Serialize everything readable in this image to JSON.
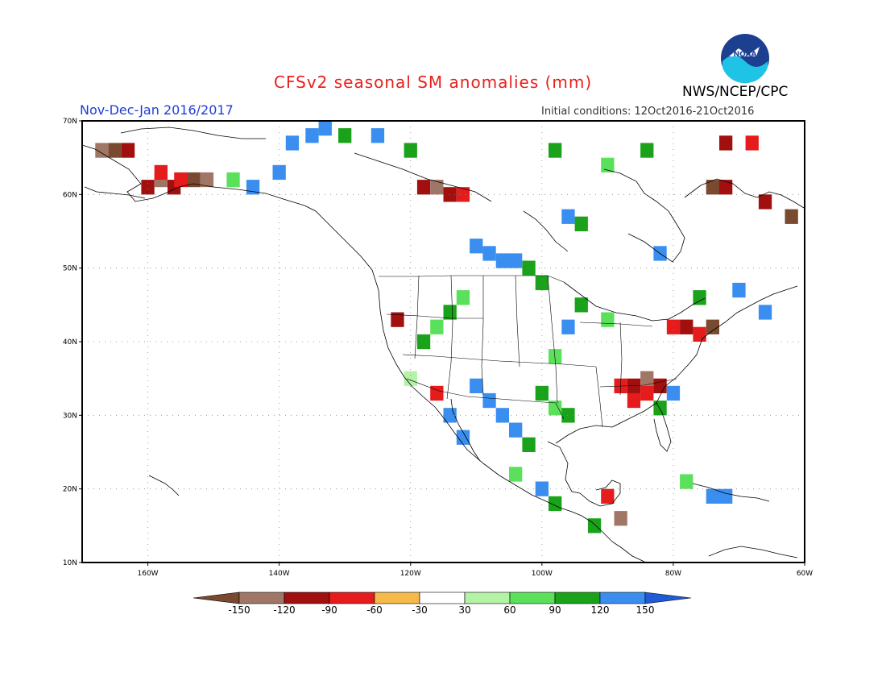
{
  "header": {
    "title": "CFSv2 seasonal SM anomalies (mm)",
    "period": "Nov-Dec-Jan 2016/2017",
    "initial_conditions": "Initial conditions: 12Oct2016-21Oct2016",
    "agency": "NWS/NCEP/CPC",
    "logo_text": "NOAA"
  },
  "map": {
    "lat_labels": [
      "70N",
      "60N",
      "50N",
      "40N",
      "30N",
      "20N",
      "10N"
    ],
    "lon_labels": [
      "160W",
      "140W",
      "120W",
      "100W",
      "80W",
      "60W"
    ],
    "lat_range": [
      10,
      70
    ],
    "lon_range": [
      -170,
      -60
    ],
    "grid": "dotted",
    "anomaly_cells": [
      {
        "lon": -167,
        "lat": 66,
        "v": -120
      },
      {
        "lon": -165,
        "lat": 66,
        "v": -150
      },
      {
        "lon": -163,
        "lat": 66,
        "v": -90
      },
      {
        "lon": -160,
        "lat": 61,
        "v": -90
      },
      {
        "lon": -158,
        "lat": 62,
        "v": -120
      },
      {
        "lon": -156,
        "lat": 61,
        "v": -90
      },
      {
        "lon": -155,
        "lat": 62,
        "v": -60
      },
      {
        "lon": -158,
        "lat": 63,
        "v": -60
      },
      {
        "lon": -153,
        "lat": 62,
        "v": -150
      },
      {
        "lon": -151,
        "lat": 62,
        "v": -120
      },
      {
        "lon": -147,
        "lat": 62,
        "v": 60
      },
      {
        "lon": -144,
        "lat": 61,
        "v": 150
      },
      {
        "lon": -140,
        "lat": 63,
        "v": 150
      },
      {
        "lon": -138,
        "lat": 67,
        "v": 120
      },
      {
        "lon": -135,
        "lat": 68,
        "v": 150
      },
      {
        "lon": -133,
        "lat": 69,
        "v": 150
      },
      {
        "lon": -130,
        "lat": 68,
        "v": 90
      },
      {
        "lon": -125,
        "lat": 68,
        "v": 120
      },
      {
        "lon": -120,
        "lat": 66,
        "v": 90
      },
      {
        "lon": -118,
        "lat": 61,
        "v": -90
      },
      {
        "lon": -116,
        "lat": 61,
        "v": -120
      },
      {
        "lon": -114,
        "lat": 60,
        "v": -90
      },
      {
        "lon": -112,
        "lat": 60,
        "v": -60
      },
      {
        "lon": -110,
        "lat": 53,
        "v": 150
      },
      {
        "lon": -108,
        "lat": 52,
        "v": 150
      },
      {
        "lon": -106,
        "lat": 51,
        "v": 150
      },
      {
        "lon": -104,
        "lat": 51,
        "v": 120
      },
      {
        "lon": -102,
        "lat": 50,
        "v": 90
      },
      {
        "lon": -100,
        "lat": 48,
        "v": 90
      },
      {
        "lon": -112,
        "lat": 46,
        "v": 60
      },
      {
        "lon": -114,
        "lat": 44,
        "v": 90
      },
      {
        "lon": -116,
        "lat": 42,
        "v": 60
      },
      {
        "lon": -118,
        "lat": 40,
        "v": 90
      },
      {
        "lon": -122,
        "lat": 43,
        "v": -90
      },
      {
        "lon": -110,
        "lat": 34,
        "v": 150
      },
      {
        "lon": -108,
        "lat": 32,
        "v": 150
      },
      {
        "lon": -106,
        "lat": 30,
        "v": 120
      },
      {
        "lon": -104,
        "lat": 28,
        "v": 150
      },
      {
        "lon": -102,
        "lat": 26,
        "v": 90
      },
      {
        "lon": -100,
        "lat": 33,
        "v": 90
      },
      {
        "lon": -98,
        "lat": 31,
        "v": 60
      },
      {
        "lon": -96,
        "lat": 30,
        "v": 90
      },
      {
        "lon": -88,
        "lat": 34,
        "v": -60
      },
      {
        "lon": -86,
        "lat": 34,
        "v": -90
      },
      {
        "lon": -84,
        "lat": 35,
        "v": -120
      },
      {
        "lon": -82,
        "lat": 34,
        "v": -90
      },
      {
        "lon": -84,
        "lat": 33,
        "v": -60
      },
      {
        "lon": -86,
        "lat": 32,
        "v": -60
      },
      {
        "lon": -80,
        "lat": 33,
        "v": 150
      },
      {
        "lon": -82,
        "lat": 31,
        "v": 90
      },
      {
        "lon": -80,
        "lat": 42,
        "v": -60
      },
      {
        "lon": -78,
        "lat": 42,
        "v": -90
      },
      {
        "lon": -76,
        "lat": 41,
        "v": -60
      },
      {
        "lon": -74,
        "lat": 42,
        "v": -150
      },
      {
        "lon": -90,
        "lat": 43,
        "v": 60
      },
      {
        "lon": -94,
        "lat": 45,
        "v": 90
      },
      {
        "lon": -96,
        "lat": 42,
        "v": 120
      },
      {
        "lon": -98,
        "lat": 38,
        "v": 60
      },
      {
        "lon": -72,
        "lat": 67,
        "v": -90
      },
      {
        "lon": -68,
        "lat": 67,
        "v": -60
      },
      {
        "lon": -74,
        "lat": 61,
        "v": -150
      },
      {
        "lon": -72,
        "lat": 61,
        "v": -90
      },
      {
        "lon": -66,
        "lat": 59,
        "v": -90
      },
      {
        "lon": -62,
        "lat": 57,
        "v": -150
      },
      {
        "lon": -84,
        "lat": 66,
        "v": 90
      },
      {
        "lon": -90,
        "lat": 64,
        "v": 60
      },
      {
        "lon": -98,
        "lat": 66,
        "v": 90
      },
      {
        "lon": -96,
        "lat": 57,
        "v": 150
      },
      {
        "lon": -94,
        "lat": 56,
        "v": 90
      },
      {
        "lon": -82,
        "lat": 52,
        "v": 150
      },
      {
        "lon": -76,
        "lat": 46,
        "v": 90
      },
      {
        "lon": -70,
        "lat": 47,
        "v": 120
      },
      {
        "lon": -66,
        "lat": 44,
        "v": 150
      },
      {
        "lon": -90,
        "lat": 19,
        "v": -60
      },
      {
        "lon": -88,
        "lat": 16,
        "v": -120
      },
      {
        "lon": -92,
        "lat": 15,
        "v": 90
      },
      {
        "lon": -74,
        "lat": 19,
        "v": 150
      },
      {
        "lon": -72,
        "lat": 19,
        "v": 120
      },
      {
        "lon": -78,
        "lat": 21,
        "v": 60
      },
      {
        "lon": -100,
        "lat": 20,
        "v": 150
      },
      {
        "lon": -98,
        "lat": 18,
        "v": 90
      },
      {
        "lon": -104,
        "lat": 22,
        "v": 60
      },
      {
        "lon": -114,
        "lat": 30,
        "v": 120
      },
      {
        "lon": -112,
        "lat": 27,
        "v": 150
      },
      {
        "lon": -116,
        "lat": 33,
        "v": -60
      },
      {
        "lon": -120,
        "lat": 35,
        "v": 30
      }
    ]
  },
  "legend": {
    "ticks": [
      "-150",
      "-120",
      "-90",
      "-60",
      "-30",
      "30",
      "60",
      "90",
      "120",
      "150"
    ],
    "colors": [
      "#7a4a30",
      "#a07766",
      "#a10f0f",
      "#e61c1c",
      "#ff5a1c",
      "#f7b94a",
      "#ffffff",
      "#b4f2a5",
      "#5be05b",
      "#1aa31a",
      "#3a8ef0",
      "#1f5bd6"
    ]
  }
}
